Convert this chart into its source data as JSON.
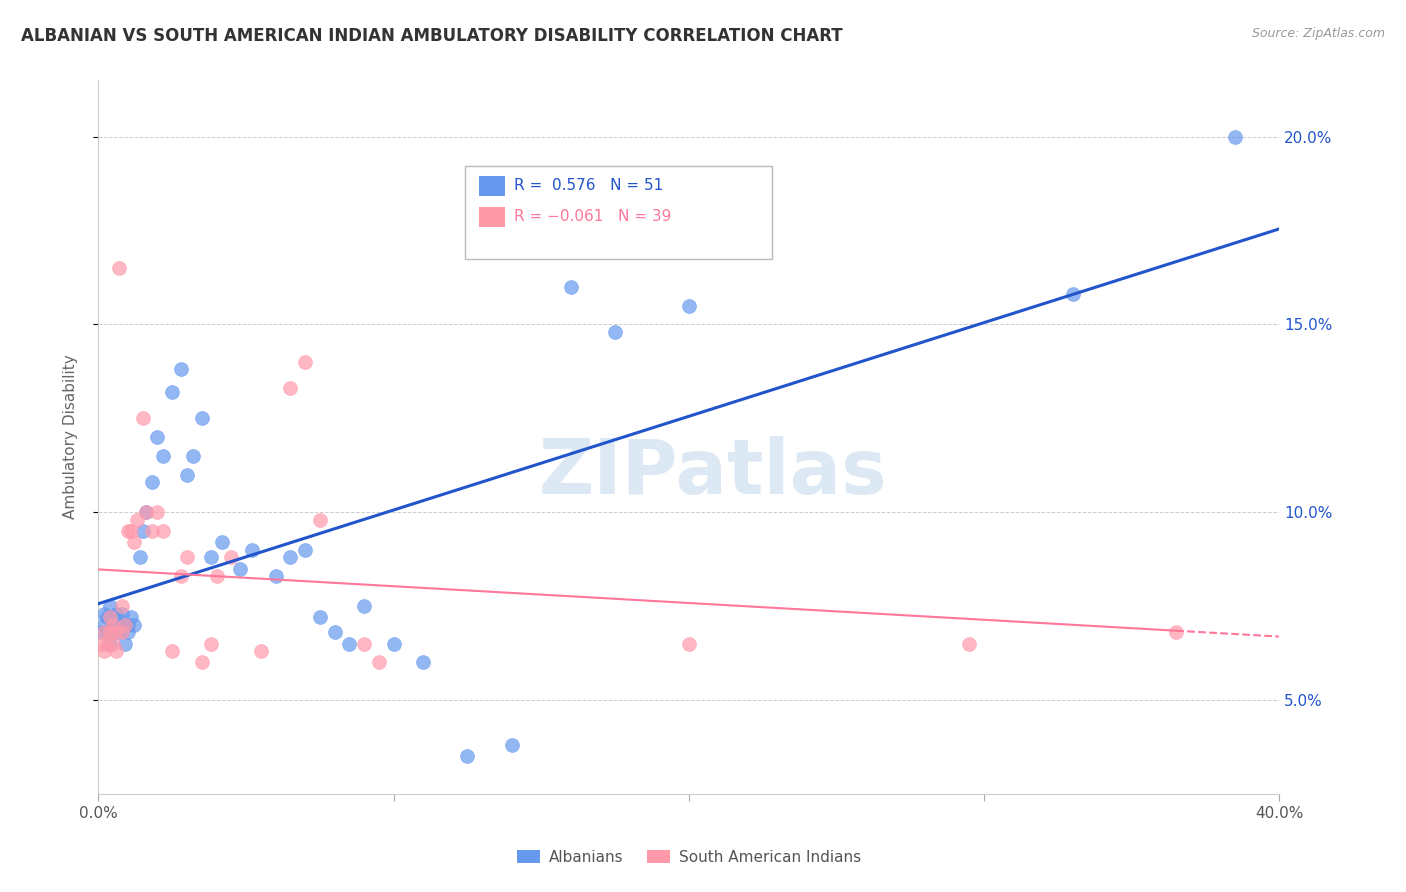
{
  "title": "ALBANIAN VS SOUTH AMERICAN INDIAN AMBULATORY DISABILITY CORRELATION CHART",
  "source": "Source: ZipAtlas.com",
  "ylabel": "Ambulatory Disability",
  "watermark": "ZIPatlas",
  "albanian_color": "#6699ee",
  "sam_color": "#ff99aa",
  "albanian_line_color": "#2255cc",
  "sam_line_color": "#ff7799",
  "xlim": [
    0.0,
    0.4
  ],
  "ylim": [
    0.025,
    0.215
  ],
  "yticks": [
    0.05,
    0.1,
    0.15,
    0.2
  ],
  "ytick_labels": [
    "5.0%",
    "10.0%",
    "15.0%",
    "20.0%"
  ],
  "xticks": [
    0.0,
    0.1,
    0.2,
    0.3,
    0.4
  ],
  "albanian_x": [
    0.001,
    0.002,
    0.002,
    0.003,
    0.003,
    0.004,
    0.004,
    0.005,
    0.005,
    0.006,
    0.006,
    0.007,
    0.007,
    0.008,
    0.008,
    0.009,
    0.01,
    0.01,
    0.011,
    0.012,
    0.014,
    0.015,
    0.016,
    0.018,
    0.02,
    0.022,
    0.025,
    0.028,
    0.03,
    0.032,
    0.035,
    0.038,
    0.042,
    0.048,
    0.052,
    0.06,
    0.065,
    0.07,
    0.075,
    0.08,
    0.085,
    0.09,
    0.1,
    0.11,
    0.125,
    0.14,
    0.16,
    0.175,
    0.2,
    0.33,
    0.385
  ],
  "albanian_y": [
    0.068,
    0.073,
    0.07,
    0.072,
    0.068,
    0.075,
    0.065,
    0.07,
    0.069,
    0.068,
    0.073,
    0.071,
    0.068,
    0.073,
    0.069,
    0.065,
    0.07,
    0.068,
    0.072,
    0.07,
    0.088,
    0.095,
    0.1,
    0.108,
    0.12,
    0.115,
    0.132,
    0.138,
    0.11,
    0.115,
    0.125,
    0.088,
    0.092,
    0.085,
    0.09,
    0.083,
    0.088,
    0.09,
    0.072,
    0.068,
    0.065,
    0.075,
    0.065,
    0.06,
    0.035,
    0.038,
    0.16,
    0.148,
    0.155,
    0.158,
    0.2
  ],
  "sam_x": [
    0.001,
    0.002,
    0.002,
    0.003,
    0.004,
    0.004,
    0.005,
    0.005,
    0.006,
    0.006,
    0.007,
    0.008,
    0.008,
    0.009,
    0.01,
    0.011,
    0.012,
    0.013,
    0.015,
    0.016,
    0.018,
    0.02,
    0.022,
    0.025,
    0.028,
    0.03,
    0.035,
    0.038,
    0.04,
    0.045,
    0.055,
    0.065,
    0.07,
    0.075,
    0.09,
    0.095,
    0.2,
    0.295,
    0.365
  ],
  "sam_y": [
    0.065,
    0.063,
    0.068,
    0.065,
    0.068,
    0.072,
    0.065,
    0.07,
    0.063,
    0.068,
    0.165,
    0.068,
    0.075,
    0.07,
    0.095,
    0.095,
    0.092,
    0.098,
    0.125,
    0.1,
    0.095,
    0.1,
    0.095,
    0.063,
    0.083,
    0.088,
    0.06,
    0.065,
    0.083,
    0.088,
    0.063,
    0.133,
    0.14,
    0.098,
    0.065,
    0.06,
    0.065,
    0.065,
    0.068
  ],
  "background_color": "#ffffff",
  "grid_color": "#cccccc"
}
